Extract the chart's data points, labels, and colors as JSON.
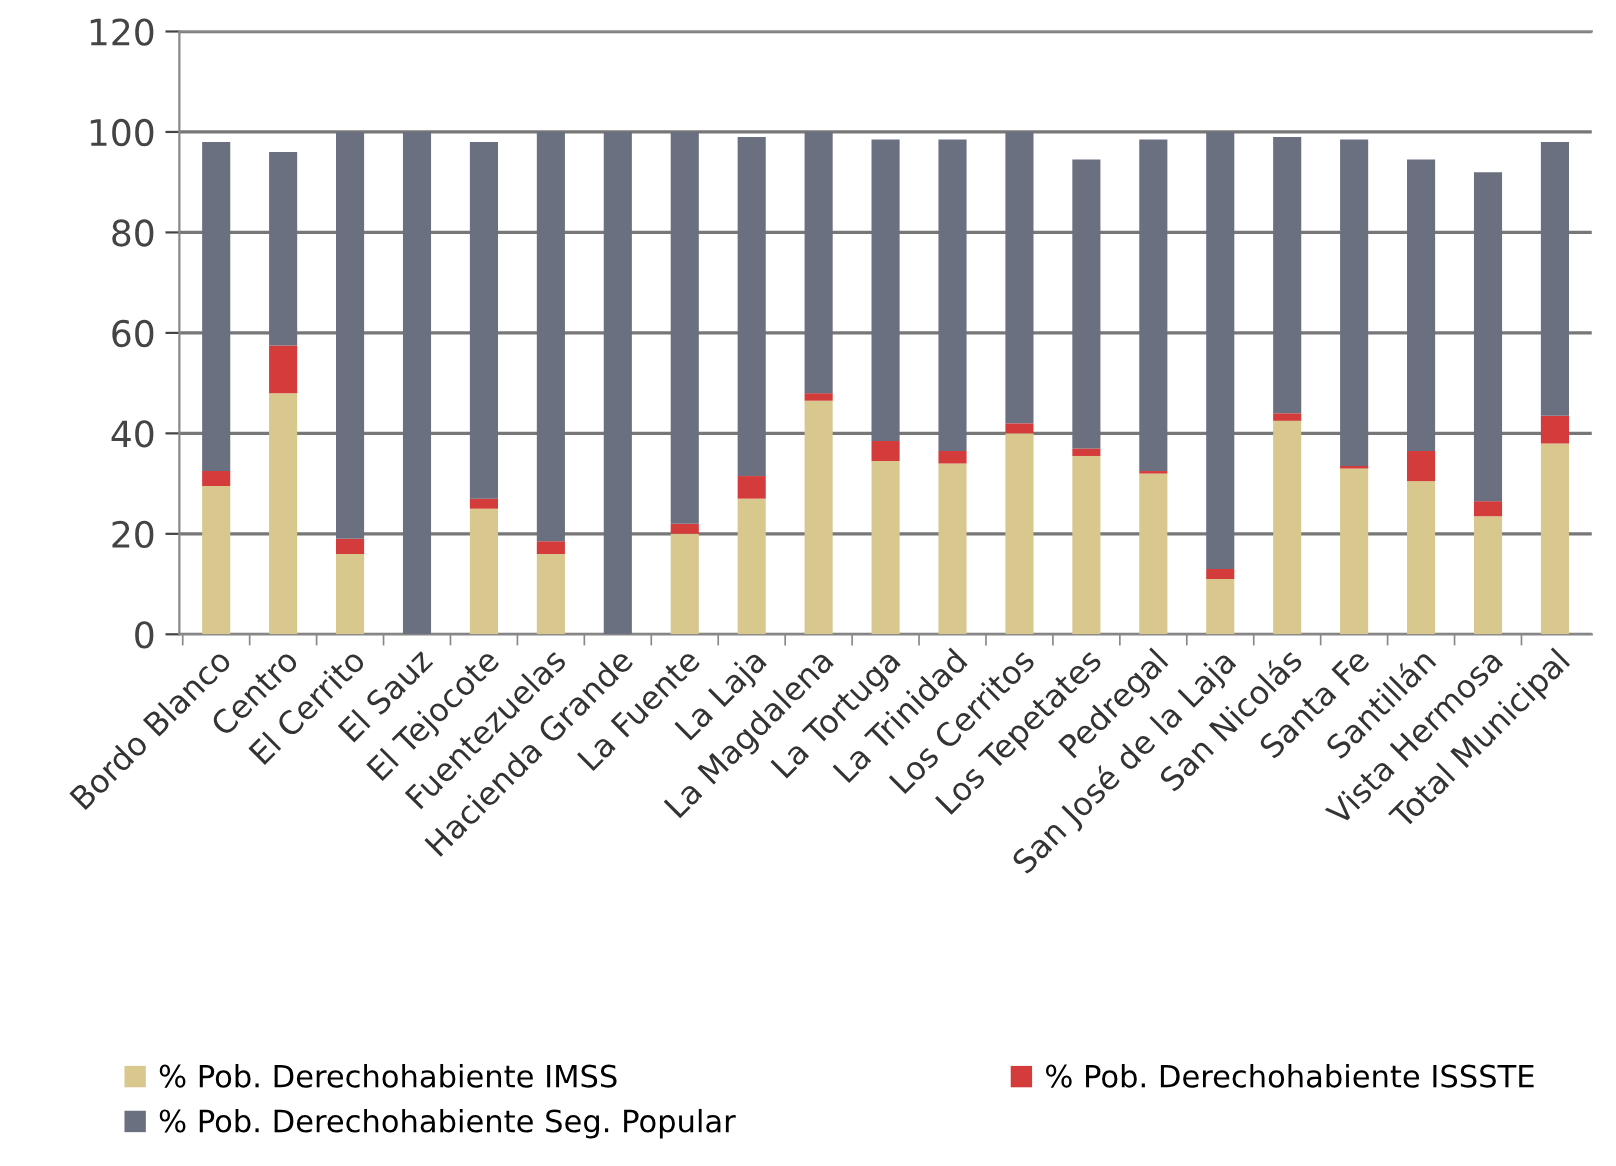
{
  "chart_data": {
    "type": "bar",
    "stacked": true,
    "categories": [
      "Bordo Blanco",
      "Centro",
      "El Cerrito",
      "El Sauz",
      "El Tejocote",
      "Fuentezuelas",
      "Hacienda Grande",
      "La Fuente",
      "La Laja",
      "La Magdalena",
      "La Tortuga",
      "La Trinidad",
      "Los Cerritos",
      "Los Tepetates",
      "Pedregal",
      "San José de la Laja",
      "San Nicolás",
      "Santa Fe",
      "Santillán",
      "Vista Hermosa",
      "Total Municipal"
    ],
    "series": [
      {
        "name": "% Pob. Derechohabiente IMSS",
        "color": "#d8c88e",
        "values": [
          29.5,
          48,
          16,
          0,
          25,
          16,
          0,
          20,
          27,
          46.5,
          34.5,
          34,
          40,
          35.5,
          32,
          11,
          42.5,
          33,
          30.5,
          23.5,
          38
        ]
      },
      {
        "name": "% Pob. Derechohabiente ISSSTE",
        "color": "#d43b3b",
        "values": [
          3,
          9.5,
          3,
          0,
          2,
          2.5,
          0,
          2,
          4.5,
          1.5,
          4,
          2.5,
          2,
          1.5,
          0.5,
          2,
          1.5,
          0.5,
          6,
          3,
          5.5
        ]
      },
      {
        "name": "% Pob. Derechohabiente Seg. Popular",
        "color": "#6b7080",
        "values": [
          65.5,
          38.5,
          81,
          100,
          71,
          81.5,
          100,
          78,
          67.5,
          52,
          60,
          62,
          58,
          57.5,
          66,
          87,
          55,
          65,
          58,
          65.5,
          54.5
        ]
      }
    ],
    "ylim": [
      0,
      120
    ],
    "yticks": [
      0,
      20,
      40,
      60,
      80,
      100,
      120
    ],
    "grid": "y",
    "legend": "bottom"
  }
}
